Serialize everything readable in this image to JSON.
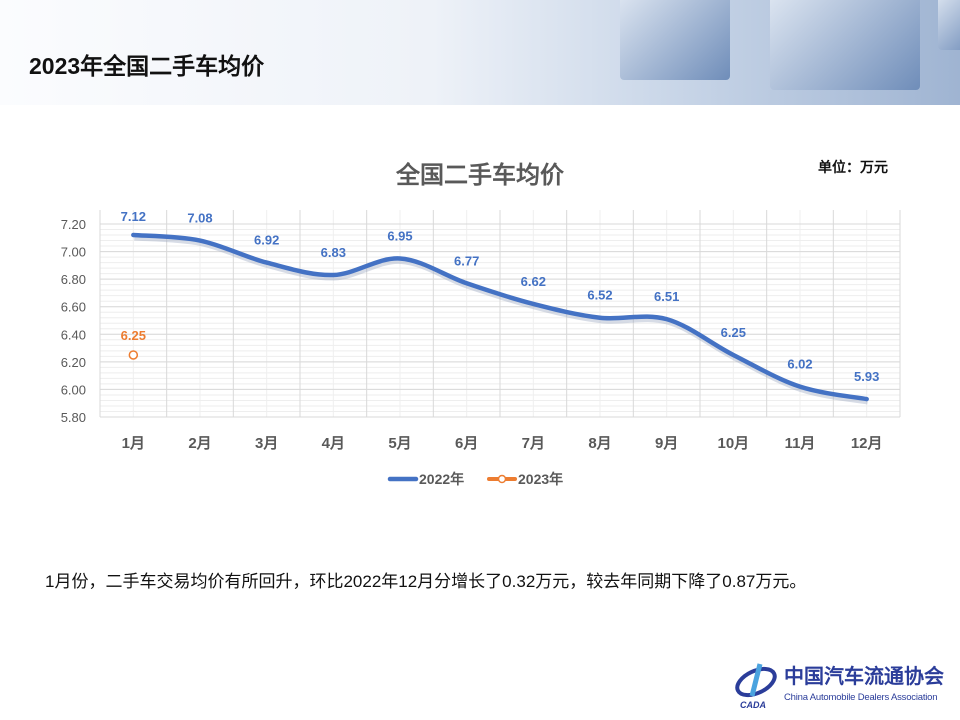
{
  "header": {
    "title": "2023年全国二手车均价"
  },
  "unit_label": "单位：万元",
  "note": "1月份，二手车交易均价有所回升，环比2022年12月分增长了0.32万元，较去年同期下降了0.87万元。",
  "logo": {
    "cn": "中国汽车流通协会",
    "en": "China Automobile Dealers Association",
    "mark": "CADA"
  },
  "chart_data": {
    "type": "line",
    "title": "全国二手车均价",
    "categories": [
      "1月",
      "2月",
      "3月",
      "4月",
      "5月",
      "6月",
      "7月",
      "8月",
      "9月",
      "10月",
      "11月",
      "12月"
    ],
    "series": [
      {
        "name": "2022年",
        "color": "#4472c4",
        "values": [
          7.12,
          7.08,
          6.92,
          6.83,
          6.95,
          6.77,
          6.62,
          6.52,
          6.51,
          6.25,
          6.02,
          5.93
        ]
      },
      {
        "name": "2023年",
        "color": "#ed7d31",
        "values": [
          6.25,
          null,
          null,
          null,
          null,
          null,
          null,
          null,
          null,
          null,
          null,
          null
        ]
      }
    ],
    "yticks": [
      "5.80",
      "6.00",
      "6.20",
      "6.40",
      "6.60",
      "6.80",
      "7.00",
      "7.20"
    ],
    "ylim": [
      5.8,
      7.2
    ],
    "grid": true,
    "legend": "bottom",
    "xlabel": "",
    "ylabel": ""
  }
}
